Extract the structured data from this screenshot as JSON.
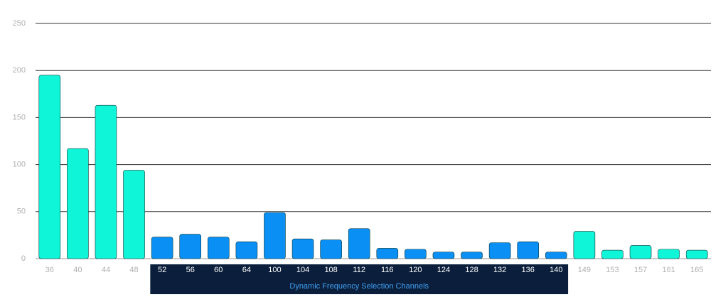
{
  "chart_data": {
    "type": "bar",
    "categories": [
      "36",
      "40",
      "44",
      "48",
      "52",
      "56",
      "60",
      "64",
      "100",
      "104",
      "108",
      "112",
      "116",
      "120",
      "124",
      "128",
      "132",
      "136",
      "140",
      "149",
      "153",
      "157",
      "161",
      "165"
    ],
    "values": [
      195,
      117,
      163,
      94,
      23,
      26,
      23,
      18,
      49,
      21,
      20,
      32,
      11,
      10,
      7,
      7,
      17,
      18,
      7,
      29,
      9,
      14,
      10,
      9
    ],
    "colors": [
      "#0ff5d8",
      "#0ff5d8",
      "#0ff5d8",
      "#0ff5d8",
      "#0a8ff5",
      "#0a8ff5",
      "#0a8ff5",
      "#0a8ff5",
      "#0a8ff5",
      "#0a8ff5",
      "#0a8ff5",
      "#0a8ff5",
      "#0a8ff5",
      "#0a8ff5",
      "#0a8ff5",
      "#0a8ff5",
      "#0a8ff5",
      "#0a8ff5",
      "#0a8ff5",
      "#0ff5d8",
      "#0ff5d8",
      "#0ff5d8",
      "#0ff5d8",
      "#0ff5d8"
    ],
    "annotation": "Dynamic Frequency Selection Channels",
    "ylim": [
      0,
      250
    ],
    "yticks": [
      0,
      50,
      100,
      150,
      200,
      250
    ],
    "grid": true
  }
}
